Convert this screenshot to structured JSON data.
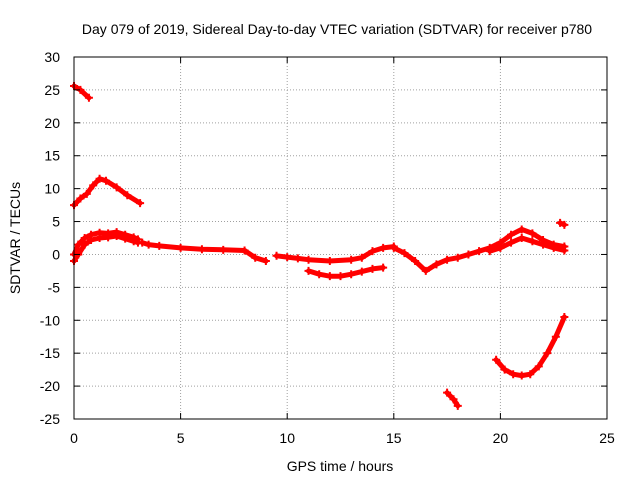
{
  "chart_data": {
    "type": "scatter",
    "title": "Day 079 of 2019, Sidereal Day-to-day VTEC variation (SDTVAR) for receiver p780",
    "xlabel": "GPS time / hours",
    "ylabel": "SDTVAR / TECUs",
    "xlim": [
      0,
      25
    ],
    "ylim": [
      -25,
      30
    ],
    "xticks": [
      0,
      5,
      10,
      15,
      20,
      25
    ],
    "yticks": [
      -25,
      -20,
      -15,
      -10,
      -5,
      0,
      5,
      10,
      15,
      20,
      25,
      30
    ],
    "grid": true,
    "series_color": "#ff0000",
    "series": [
      {
        "name": "segment-early-high",
        "x": [
          0.0,
          0.3,
          0.7
        ],
        "y": [
          25.6,
          25.0,
          23.8
        ]
      },
      {
        "name": "segment-morning-hump",
        "x": [
          0.0,
          0.3,
          0.6,
          0.9,
          1.2,
          1.5,
          2.0,
          2.5,
          3.1
        ],
        "y": [
          7.5,
          8.5,
          9.2,
          10.5,
          11.5,
          11.2,
          10.2,
          9.0,
          7.8
        ]
      },
      {
        "name": "segment-upper-band",
        "x": [
          0.0,
          0.2,
          0.5,
          0.8,
          1.2,
          1.6,
          2.0,
          2.4,
          2.8,
          3.0
        ],
        "y": [
          0.0,
          1.5,
          2.5,
          3.0,
          3.3,
          3.2,
          3.4,
          3.0,
          2.6,
          2.3
        ]
      },
      {
        "name": "segment-lower-band",
        "x": [
          0.0,
          0.2,
          0.5,
          0.8,
          1.2,
          1.6,
          2.0,
          2.4,
          2.8,
          3.0
        ],
        "y": [
          -1.0,
          0.0,
          1.5,
          2.2,
          2.5,
          2.6,
          2.8,
          2.4,
          2.0,
          1.8
        ]
      },
      {
        "name": "segment-midday-1",
        "x": [
          3.2,
          3.5,
          4.0,
          5.0,
          6.0,
          7.0,
          8.0,
          8.5,
          9.0
        ],
        "y": [
          1.8,
          1.5,
          1.3,
          1.0,
          0.8,
          0.7,
          0.6,
          -0.5,
          -1.0
        ]
      },
      {
        "name": "segment-midday-2",
        "x": [
          9.5,
          10.0,
          10.5,
          11.0,
          12.0,
          13.0,
          13.5,
          14.0,
          14.5,
          15.0
        ],
        "y": [
          -0.2,
          -0.4,
          -0.6,
          -0.8,
          -1.0,
          -0.8,
          -0.5,
          0.5,
          1.0,
          1.2
        ]
      },
      {
        "name": "segment-midday-dip",
        "x": [
          11.0,
          11.5,
          12.0,
          12.5,
          13.0,
          13.5,
          14.0,
          14.5
        ],
        "y": [
          -2.5,
          -3.0,
          -3.3,
          -3.3,
          -3.0,
          -2.6,
          -2.2,
          -2.0
        ]
      },
      {
        "name": "segment-afternoon",
        "x": [
          15.0,
          15.5,
          16.0,
          16.5,
          17.0,
          17.5,
          18.0,
          18.5,
          19.0,
          19.5,
          20.0,
          20.5,
          21.0,
          21.5,
          22.0,
          22.5,
          23.0
        ],
        "y": [
          1.0,
          0.2,
          -1.0,
          -2.5,
          -1.5,
          -0.8,
          -0.5,
          0.0,
          0.5,
          1.0,
          1.8,
          3.0,
          3.8,
          3.2,
          2.2,
          1.5,
          1.2
        ]
      },
      {
        "name": "segment-afternoon-low",
        "x": [
          19.5,
          20.0,
          20.5,
          21.0,
          21.5,
          22.0,
          22.5,
          23.0
        ],
        "y": [
          0.5,
          1.0,
          1.8,
          2.5,
          2.0,
          1.5,
          1.0,
          0.6
        ]
      },
      {
        "name": "segment-late-spike",
        "x": [
          22.8,
          23.0
        ],
        "y": [
          4.8,
          4.5
        ]
      },
      {
        "name": "segment-deep-negative",
        "x": [
          17.5,
          17.8,
          18.0
        ],
        "y": [
          -21.0,
          -22.0,
          -23.0
        ]
      },
      {
        "name": "segment-evening-curve",
        "x": [
          19.8,
          20.2,
          20.6,
          21.0,
          21.4,
          21.8,
          22.2,
          22.6,
          23.0
        ],
        "y": [
          -16.0,
          -17.5,
          -18.2,
          -18.4,
          -18.2,
          -17.0,
          -15.0,
          -12.5,
          -9.5
        ]
      }
    ]
  }
}
